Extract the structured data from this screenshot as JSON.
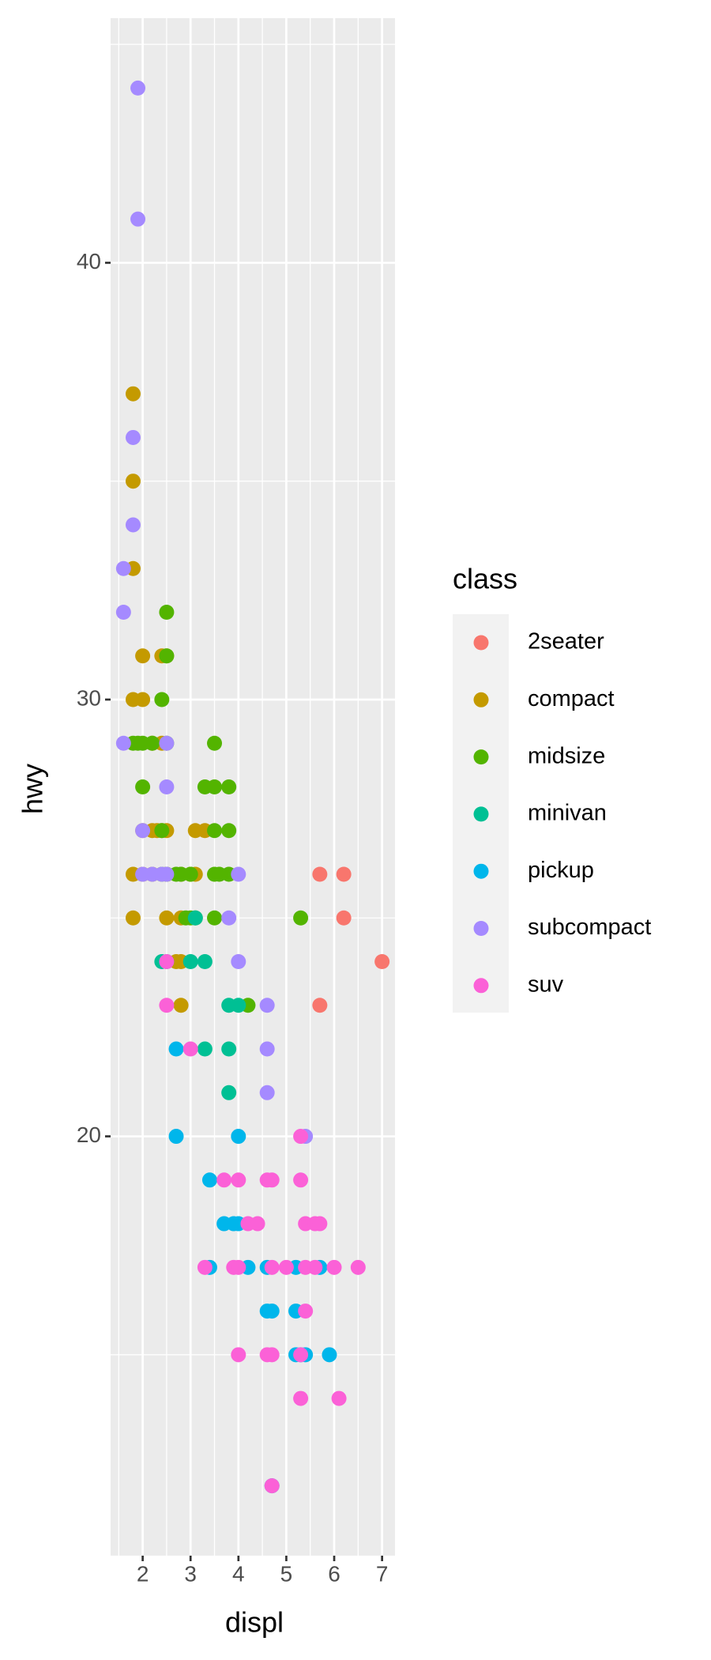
{
  "chart_data": {
    "type": "scatter",
    "x_label": "displ",
    "y_label": "hwy",
    "legend_title": "class",
    "legend": "right",
    "grid": true,
    "xlim": [
      1.33,
      7.27
    ],
    "ylim": [
      10.4,
      45.6
    ],
    "xticks": [
      2,
      3,
      4,
      5,
      6,
      7
    ],
    "yticks": [
      20,
      30,
      40
    ],
    "x_minor_ticks": [
      1.5,
      2.5,
      3.5,
      4.5,
      5.5,
      6.5
    ],
    "y_minor_ticks": [
      15,
      25,
      35,
      45
    ],
    "series": [
      {
        "name": "2seater",
        "color": "#F8766D",
        "x": [
          5.7,
          6.2,
          6.2,
          5.7,
          7.0
        ],
        "values": [
          26,
          26,
          25,
          23,
          24
        ]
      },
      {
        "name": "compact",
        "color": "#C49A00",
        "x": [
          1.8,
          1.8,
          1.8,
          2.0,
          1.8,
          2.0,
          2.2,
          2.4,
          2.5,
          2.2,
          2.4,
          2.5,
          2.3,
          1.8,
          2.0,
          2.5,
          1.8,
          2.8,
          2.5,
          2.8,
          2.7,
          2.8,
          3.1,
          3.3,
          3.0,
          3.1,
          2.8,
          2.4,
          2.2,
          2.0
        ],
        "values": [
          37,
          35,
          33,
          31,
          30,
          30,
          29,
          31,
          31,
          27,
          27,
          27,
          27,
          26,
          26,
          25,
          25,
          25,
          26,
          24,
          24,
          23,
          27,
          27,
          26,
          26,
          26,
          29,
          26,
          27
        ]
      },
      {
        "name": "midsize",
        "color": "#53B400",
        "x": [
          2.5,
          2.5,
          2.4,
          1.8,
          2.0,
          1.9,
          2.0,
          3.5,
          3.3,
          3.5,
          3.8,
          2.4,
          2.7,
          2.5,
          3.5,
          3.8,
          3.0,
          3.5,
          3.6,
          3.8,
          2.4,
          2.8,
          2.9,
          3.0,
          3.1,
          3.5,
          5.3,
          4.2,
          2.2,
          2.5
        ],
        "values": [
          32,
          31,
          30,
          29,
          29,
          29,
          28,
          29,
          28,
          28,
          28,
          27,
          26,
          26,
          27,
          27,
          26,
          26,
          26,
          26,
          26,
          26,
          25,
          25,
          25,
          25,
          25,
          23,
          29,
          29
        ]
      },
      {
        "name": "minivan",
        "color": "#00C094",
        "x": [
          2.4,
          3.0,
          3.3,
          3.8,
          4.0,
          3.8,
          3.3,
          3.8,
          2.5,
          3.1
        ],
        "values": [
          24,
          24,
          24,
          23,
          23,
          22,
          22,
          21,
          24,
          25
        ]
      },
      {
        "name": "pickup",
        "color": "#00B6EB",
        "x": [
          2.7,
          2.7,
          4.0,
          3.4,
          3.7,
          3.9,
          4.0,
          3.4,
          4.2,
          4.6,
          5.2,
          5.7,
          4.6,
          4.7,
          5.2,
          5.2,
          5.3,
          5.4,
          5.9,
          4.7
        ],
        "values": [
          22,
          20,
          20,
          19,
          18,
          18,
          18,
          17,
          17,
          17,
          17,
          17,
          16,
          16,
          16,
          15,
          15,
          15,
          15,
          12
        ]
      },
      {
        "name": "subcompact",
        "color": "#A58AFF",
        "x": [
          1.9,
          1.9,
          1.8,
          1.8,
          1.6,
          1.6,
          1.6,
          2.5,
          2.5,
          2.0,
          2.0,
          2.2,
          2.5,
          4.0,
          3.8,
          4.0,
          4.6,
          4.6,
          4.6,
          5.4,
          2.4
        ],
        "values": [
          44,
          41,
          36,
          34,
          33,
          32,
          29,
          29,
          28,
          27,
          26,
          26,
          26,
          26,
          25,
          24,
          23,
          22,
          21,
          20,
          26
        ]
      },
      {
        "name": "suv",
        "color": "#FB61D7",
        "x": [
          2.5,
          2.5,
          3.0,
          3.7,
          4.0,
          4.6,
          4.7,
          5.3,
          4.2,
          4.4,
          5.4,
          5.6,
          5.7,
          3.3,
          3.9,
          4.0,
          4.7,
          5.0,
          5.4,
          5.6,
          6.0,
          6.5,
          5.4,
          4.0,
          4.6,
          4.7,
          5.3,
          5.3,
          6.1,
          4.7,
          5.3
        ],
        "values": [
          24,
          23,
          22,
          19,
          19,
          19,
          19,
          19,
          18,
          18,
          18,
          18,
          18,
          17,
          17,
          17,
          17,
          17,
          17,
          17,
          17,
          17,
          16,
          15,
          15,
          15,
          15,
          14,
          14,
          12,
          20
        ]
      }
    ]
  }
}
